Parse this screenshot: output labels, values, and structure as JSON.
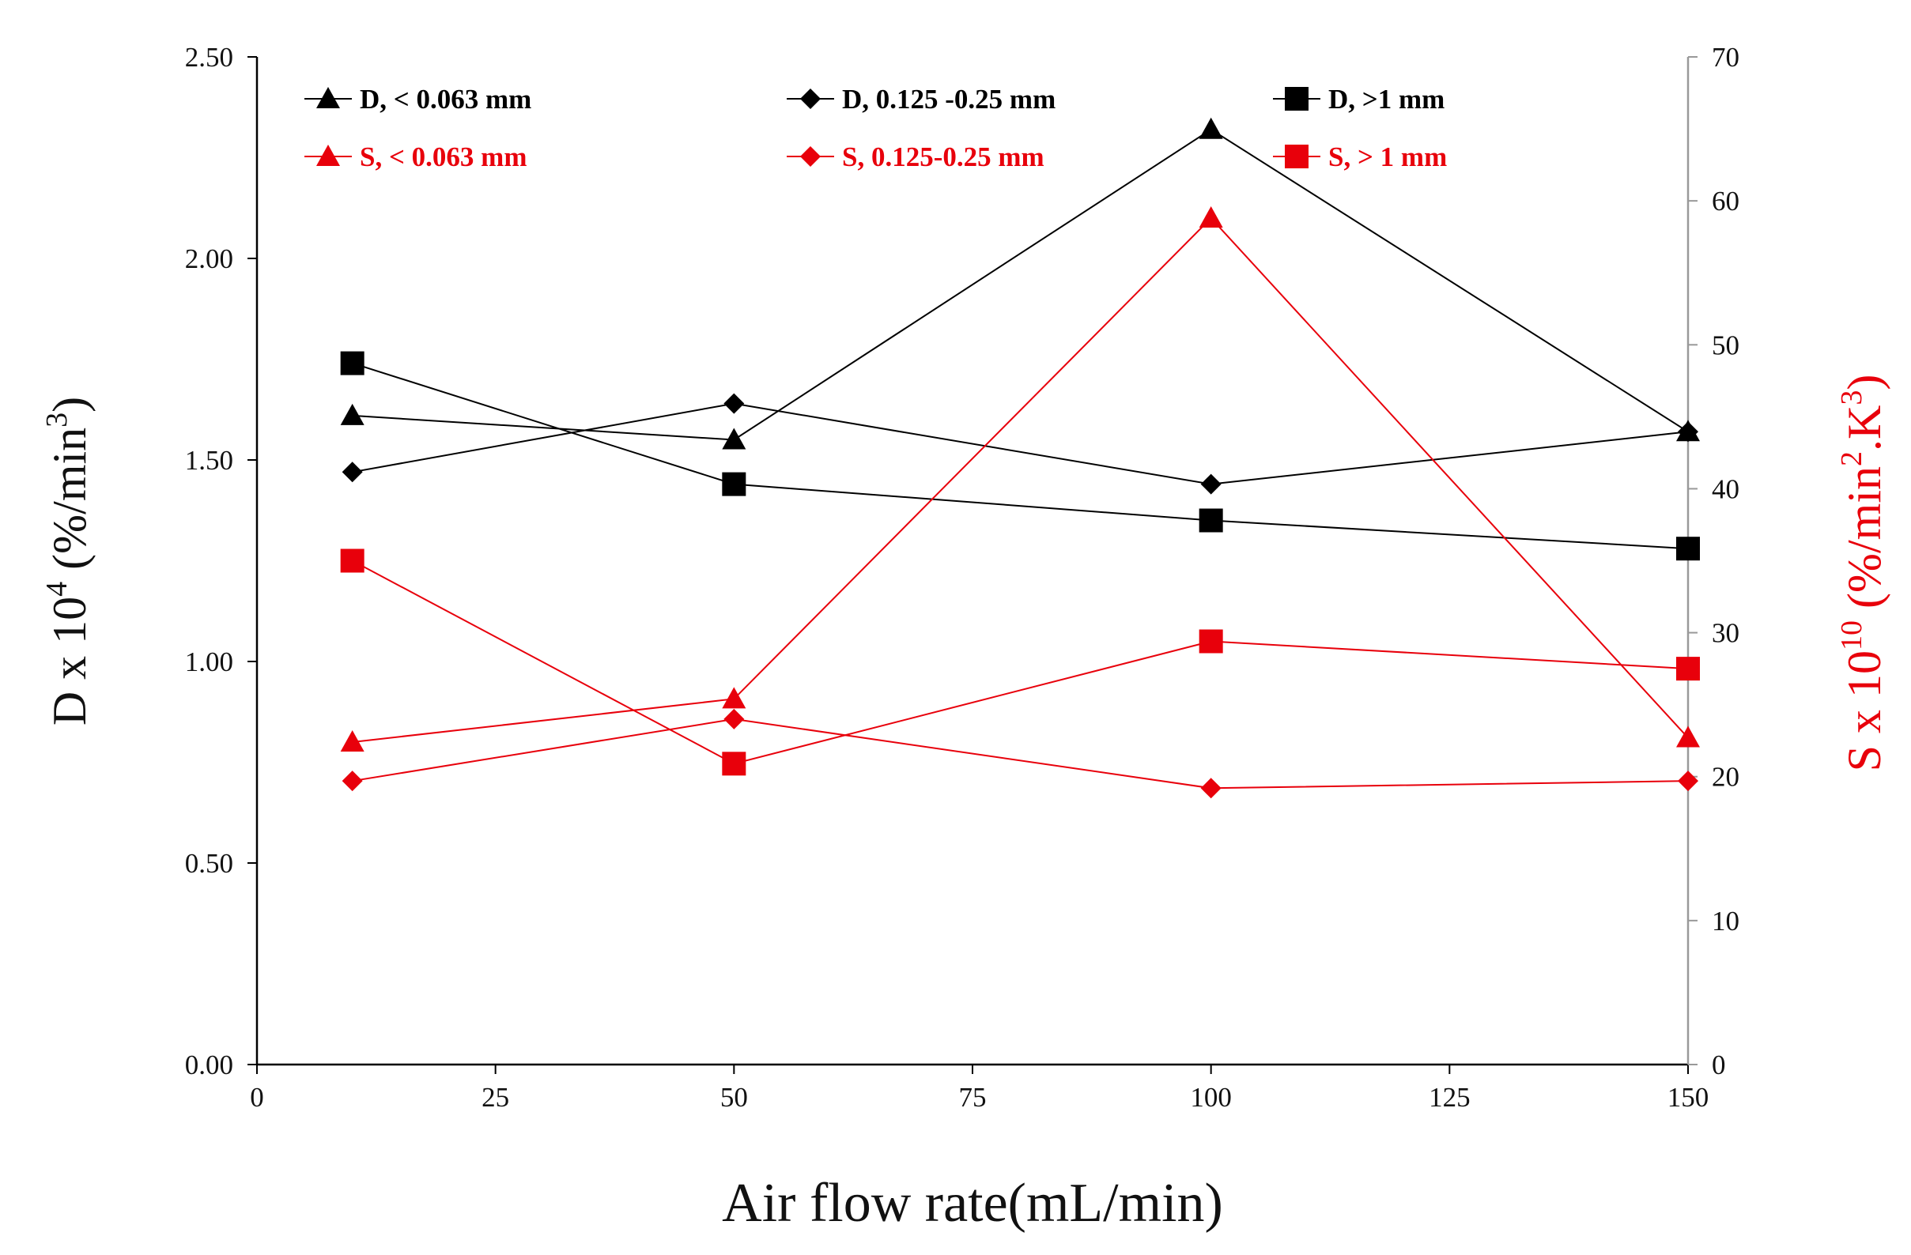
{
  "chart_data": {
    "type": "line",
    "xlabel": "Air flow rate(mL/min)",
    "ylabel_left": {
      "main": "D x 10",
      "sup": "4",
      "unit_pre": " (%/min",
      "unit_sup": "3",
      "unit_post": ")"
    },
    "ylabel_right": {
      "main": "S x 10",
      "sup": "10",
      "unit_pre": " (%/min",
      "unit_sup1": "2",
      "unit_mid": ".K",
      "unit_sup2": "3",
      "unit_post": ")"
    },
    "xlim": [
      0,
      150
    ],
    "ylim_left": [
      0,
      2.5
    ],
    "ylim_right": [
      0,
      70
    ],
    "xticks": [
      "0",
      "25",
      "50",
      "75",
      "100",
      "125",
      "150"
    ],
    "yticks_left": [
      "0.00",
      "0.50",
      "1.00",
      "1.50",
      "2.00",
      "2.50"
    ],
    "yticks_right": [
      "0",
      "10",
      "20",
      "30",
      "40",
      "50",
      "60",
      "70"
    ],
    "x": [
      10,
      50,
      100,
      150
    ],
    "series": [
      {
        "name": "D, < 0.063 mm",
        "axis": "left",
        "color": "#000000",
        "marker": "triangle",
        "values": [
          1.61,
          1.55,
          2.32,
          1.57
        ]
      },
      {
        "name": "D, 0.125 -0.25 mm",
        "axis": "left",
        "color": "#000000",
        "marker": "diamond",
        "values": [
          1.47,
          1.64,
          1.44,
          1.57
        ]
      },
      {
        "name": "D, >1 mm",
        "axis": "left",
        "color": "#000000",
        "marker": "square",
        "values": [
          1.74,
          1.44,
          1.35,
          1.28
        ]
      },
      {
        "name": "S, < 0.063 mm",
        "axis": "right",
        "color": "#e8000b",
        "marker": "triangle",
        "values": [
          22.4,
          25.4,
          58.8,
          22.7
        ]
      },
      {
        "name": "S, 0.125-0.25 mm",
        "axis": "right",
        "color": "#e8000b",
        "marker": "diamond",
        "values": [
          19.7,
          24.0,
          19.2,
          19.7
        ]
      },
      {
        "name": "S, > 1 mm",
        "axis": "right",
        "color": "#e8000b",
        "marker": "square",
        "values": [
          35.0,
          20.9,
          29.4,
          27.5
        ]
      }
    ],
    "legend_position": "top"
  }
}
